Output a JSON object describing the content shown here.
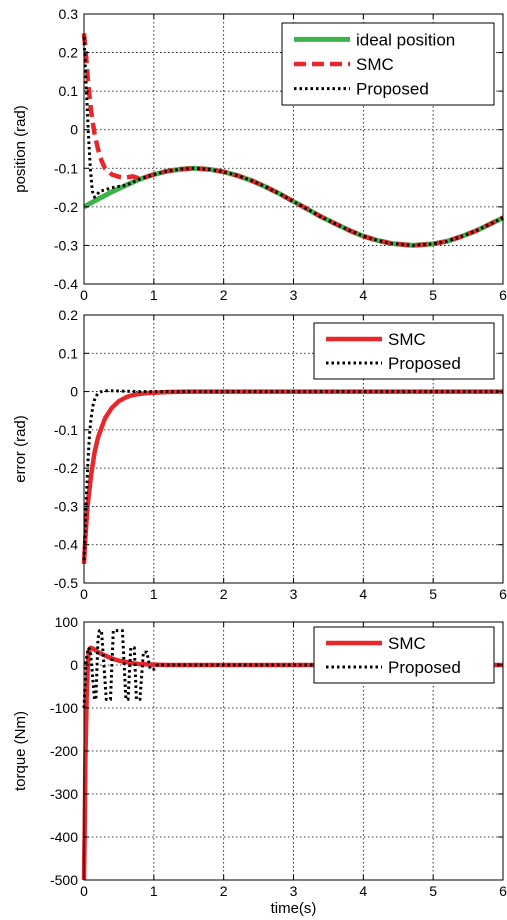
{
  "figure": {
    "xlabel": "time(s)"
  },
  "chart_data": [
    {
      "type": "line",
      "ylabel": "position (rad)",
      "xlim": [
        0,
        6
      ],
      "ylim": [
        -0.4,
        0.3
      ],
      "xticks": [
        "0",
        "1",
        "2",
        "3",
        "4",
        "5",
        "6"
      ],
      "yticks": [
        "-0.4",
        "-0.3",
        "-0.2",
        "-0.1",
        "0",
        "0.1",
        "0.2",
        "0.3"
      ],
      "grid": true,
      "legend_position": "top-right",
      "series": [
        {
          "name": "ideal position",
          "color": "#3cb44b",
          "style": "solid",
          "x": [
            0,
            0.2,
            0.4,
            0.6,
            0.8,
            1.0,
            1.2,
            1.4,
            1.57,
            1.8,
            2.0,
            2.2,
            2.4,
            2.6,
            2.8,
            3.0,
            3.2,
            3.4,
            3.6,
            3.8,
            4.0,
            4.2,
            4.4,
            4.71,
            5.0,
            5.2,
            5.4,
            5.6,
            5.8,
            6.0
          ],
          "y": [
            -0.2,
            -0.18,
            -0.161,
            -0.144,
            -0.128,
            -0.116,
            -0.107,
            -0.102,
            -0.1,
            -0.103,
            -0.109,
            -0.119,
            -0.132,
            -0.148,
            -0.166,
            -0.186,
            -0.206,
            -0.226,
            -0.244,
            -0.261,
            -0.276,
            -0.287,
            -0.295,
            -0.3,
            -0.296,
            -0.289,
            -0.277,
            -0.263,
            -0.246,
            -0.228
          ]
        },
        {
          "name": "SMC",
          "color": "#e8272b",
          "style": "dashed",
          "x": [
            0,
            0.03,
            0.06,
            0.1,
            0.15,
            0.2,
            0.25,
            0.3,
            0.4,
            0.5,
            0.6,
            0.7,
            0.8,
            1.0,
            1.2,
            1.4,
            1.57,
            1.8,
            2.0,
            2.2,
            2.4,
            2.6,
            2.8,
            3.0,
            3.2,
            3.4,
            3.6,
            3.8,
            4.0,
            4.2,
            4.4,
            4.71,
            5.0,
            5.2,
            5.4,
            5.6,
            5.8,
            6.0
          ],
          "y": [
            0.25,
            0.19,
            0.12,
            0.05,
            -0.01,
            -0.05,
            -0.08,
            -0.1,
            -0.116,
            -0.122,
            -0.124,
            -0.121,
            -0.127,
            -0.116,
            -0.107,
            -0.102,
            -0.1,
            -0.103,
            -0.109,
            -0.119,
            -0.132,
            -0.148,
            -0.166,
            -0.186,
            -0.206,
            -0.226,
            -0.244,
            -0.261,
            -0.276,
            -0.287,
            -0.295,
            -0.3,
            -0.296,
            -0.289,
            -0.277,
            -0.263,
            -0.246,
            -0.228
          ]
        },
        {
          "name": "Proposed",
          "color": "#000000",
          "style": "dotted",
          "x": [
            0,
            0.03,
            0.06,
            0.09,
            0.12,
            0.15,
            0.18,
            0.22,
            0.3,
            0.4,
            0.6,
            0.8,
            1.0,
            1.2,
            1.4,
            1.57,
            1.8,
            2.0,
            2.2,
            2.4,
            2.6,
            2.8,
            3.0,
            3.2,
            3.4,
            3.6,
            3.8,
            4.0,
            4.2,
            4.4,
            4.71,
            5.0,
            5.2,
            5.4,
            5.6,
            5.8,
            6.0
          ],
          "y": [
            0.24,
            0.12,
            0.0,
            -0.1,
            -0.16,
            -0.175,
            -0.17,
            -0.16,
            -0.156,
            -0.15,
            -0.144,
            -0.128,
            -0.116,
            -0.107,
            -0.102,
            -0.1,
            -0.103,
            -0.109,
            -0.119,
            -0.132,
            -0.148,
            -0.166,
            -0.186,
            -0.206,
            -0.226,
            -0.244,
            -0.261,
            -0.276,
            -0.287,
            -0.295,
            -0.3,
            -0.296,
            -0.289,
            -0.277,
            -0.263,
            -0.246,
            -0.228
          ]
        }
      ]
    },
    {
      "type": "line",
      "ylabel": "error (rad)",
      "xlim": [
        0,
        6
      ],
      "ylim": [
        -0.5,
        0.2
      ],
      "xticks": [
        "0",
        "1",
        "2",
        "3",
        "4",
        "5",
        "6"
      ],
      "yticks": [
        "-0.5",
        "-0.4",
        "-0.3",
        "-0.2",
        "-0.1",
        "0",
        "0.1",
        "0.2"
      ],
      "grid": true,
      "legend_position": "top-right",
      "series": [
        {
          "name": "SMC",
          "color": "#e8272b",
          "style": "solid",
          "x": [
            0,
            0.02,
            0.05,
            0.1,
            0.15,
            0.2,
            0.3,
            0.4,
            0.5,
            0.6,
            0.7,
            0.8,
            0.9,
            1.0,
            1.2,
            1.5,
            2,
            3,
            4,
            5,
            6
          ],
          "y": [
            -0.45,
            -0.38,
            -0.3,
            -0.22,
            -0.16,
            -0.12,
            -0.07,
            -0.042,
            -0.025,
            -0.015,
            -0.009,
            -0.006,
            -0.004,
            -0.003,
            -0.001,
            0,
            0,
            0,
            0,
            0,
            0
          ]
        },
        {
          "name": "Proposed",
          "color": "#000000",
          "style": "dotted",
          "x": [
            0,
            0.02,
            0.04,
            0.06,
            0.08,
            0.1,
            0.13,
            0.16,
            0.2,
            0.25,
            0.3,
            0.4,
            0.6,
            0.8,
            1.0,
            1.5,
            2,
            3,
            4,
            5,
            6
          ],
          "y": [
            -0.44,
            -0.34,
            -0.25,
            -0.17,
            -0.11,
            -0.07,
            -0.035,
            -0.015,
            -0.005,
            0,
            0.002,
            0.002,
            0.001,
            0,
            0,
            0,
            0,
            0,
            0,
            0,
            0
          ]
        }
      ]
    },
    {
      "type": "line",
      "ylabel": "torque (Nm)",
      "xlim": [
        0,
        6
      ],
      "ylim": [
        -500,
        100
      ],
      "xticks": [
        "0",
        "1",
        "2",
        "3",
        "4",
        "5",
        "6"
      ],
      "yticks": [
        "-500",
        "-400",
        "-300",
        "-200",
        "-100",
        "0",
        "100"
      ],
      "grid": true,
      "legend_position": "top-right",
      "series": [
        {
          "name": "SMC",
          "color": "#e8272b",
          "style": "solid",
          "x": [
            0,
            0.01,
            0.02,
            0.04,
            0.06,
            0.08,
            0.1,
            0.15,
            0.2,
            0.3,
            0.4,
            0.5,
            0.6,
            0.7,
            0.8,
            1.0,
            1.2,
            1.5,
            2,
            3,
            4,
            5,
            6
          ],
          "y": [
            -500,
            -380,
            -220,
            -60,
            20,
            38,
            40,
            36,
            30,
            22,
            15,
            10,
            7,
            4,
            2,
            1,
            0,
            0,
            0,
            0,
            0,
            0,
            0
          ]
        },
        {
          "name": "Proposed",
          "color": "#000000",
          "style": "dotted",
          "x": [
            0,
            0.03,
            0.06,
            0.09,
            0.12,
            0.15,
            0.17,
            0.2,
            0.22,
            0.25,
            0.32,
            0.38,
            0.42,
            0.45,
            0.55,
            0.6,
            0.63,
            0.67,
            0.72,
            0.75,
            0.8,
            0.85,
            0.9,
            0.95,
            1.0,
            1.05,
            1.1,
            1.2,
            1.5,
            2,
            3,
            4,
            5,
            6
          ],
          "y": [
            -100,
            10,
            40,
            35,
            -20,
            -80,
            -80,
            60,
            80,
            80,
            -80,
            -80,
            80,
            80,
            80,
            -80,
            -80,
            40,
            40,
            -80,
            -80,
            30,
            30,
            -10,
            -10,
            0,
            0,
            0,
            0,
            0,
            0,
            0,
            0,
            0
          ]
        }
      ]
    }
  ]
}
